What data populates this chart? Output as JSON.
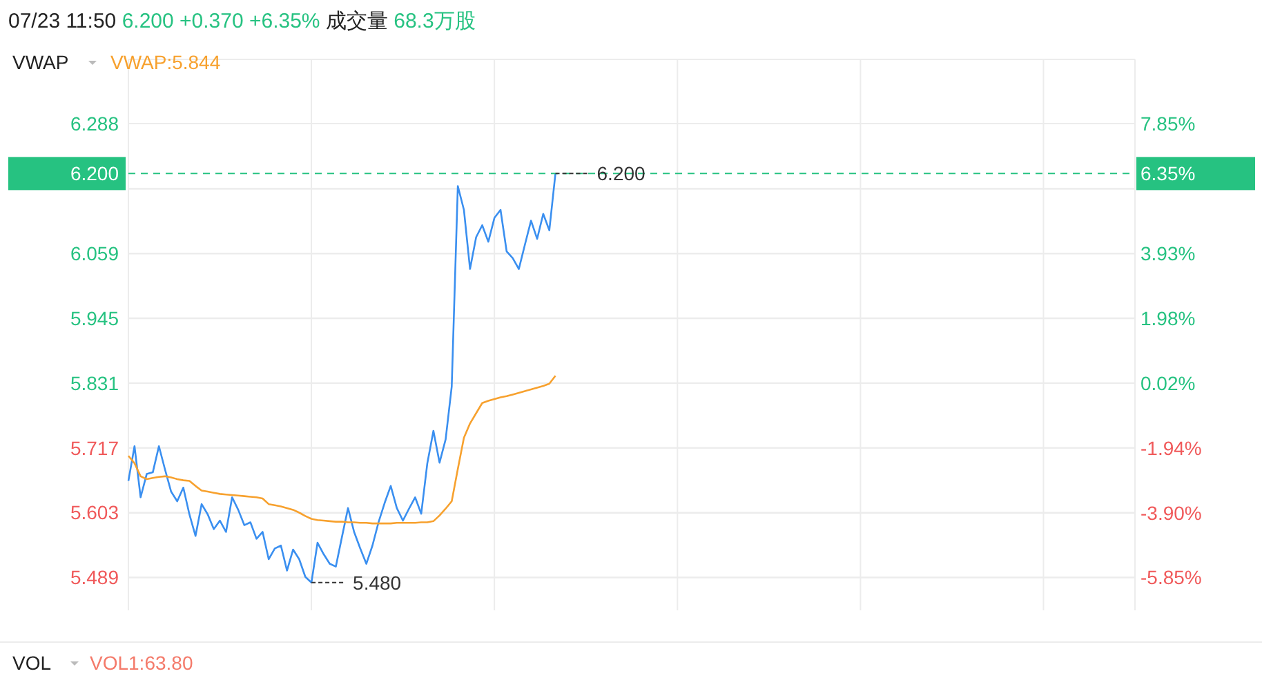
{
  "chart_data": {
    "type": "line",
    "title": "07/23 11:50",
    "subtitle": "6.200 +0.370 +6.35%",
    "annotations": [
      "成交量",
      "68.3万股",
      "VWAP",
      "VWAP:5.844",
      "VOL",
      "VOL1:63.80",
      "6.35%",
      "5.480",
      "6.200"
    ],
    "categories": [
      null,
      null,
      null,
      null,
      null,
      null,
      null,
      null,
      null,
      null,
      null,
      null,
      null,
      null,
      null,
      null,
      null,
      null,
      null,
      null,
      null,
      null,
      null,
      null,
      null,
      null,
      null,
      null,
      null,
      null,
      null,
      null,
      null,
      null,
      null,
      null,
      null,
      null,
      null,
      null,
      null,
      null,
      null,
      null,
      null,
      null,
      null,
      null,
      null,
      null,
      null,
      null,
      null,
      null,
      null,
      null,
      null,
      null,
      null,
      null,
      null,
      null,
      null,
      null,
      null,
      null,
      null,
      null,
      null,
      null,
      null,
      null,
      null,
      null,
      null,
      null,
      null,
      null,
      null,
      null,
      null,
      null,
      null,
      null,
      null,
      null,
      null,
      null,
      null,
      null,
      null,
      null,
      null,
      null,
      null,
      null,
      null,
      null,
      null,
      null,
      null,
      null,
      null,
      null,
      null,
      null,
      null,
      null,
      null,
      null,
      null,
      null,
      null,
      null,
      null,
      null,
      null,
      null,
      null,
      null,
      null,
      null,
      null,
      null,
      null,
      null,
      null,
      null,
      null,
      null,
      null,
      null,
      null,
      null,
      null,
      null,
      null,
      null,
      null,
      null,
      null,
      null,
      null,
      null,
      null,
      null,
      null,
      null,
      null,
      null,
      null,
      null,
      null,
      null,
      null,
      null,
      null,
      null,
      null,
      null,
      null,
      null,
      null,
      null,
      null,
      null
    ],
    "series": [
      {
        "color": "#3a8ff0",
        "values": [
          5.659,
          5.72,
          5.63,
          5.671,
          5.674,
          5.72,
          5.679,
          5.64,
          5.623,
          5.647,
          5.6,
          5.562,
          5.618,
          5.6,
          5.574,
          5.589,
          5.569,
          5.63,
          5.608,
          5.581,
          5.586,
          5.557,
          5.569,
          5.521,
          5.54,
          5.545,
          5.501,
          5.538,
          5.521,
          5.49,
          5.48,
          5.55,
          5.53,
          5.513,
          5.508,
          5.56,
          5.611,
          5.569,
          5.54,
          5.513,
          5.545,
          5.586,
          5.62,
          5.65,
          5.611,
          5.589,
          5.61,
          5.63,
          5.601,
          5.69,
          5.747,
          5.691,
          5.732,
          5.825,
          6.178,
          6.136,
          6.032,
          6.088,
          6.109,
          6.08,
          6.122,
          6.136,
          6.063,
          6.051,
          6.032,
          6.075,
          6.117,
          6.085,
          6.129,
          6.1,
          6.2,
          null,
          null,
          null,
          null,
          null,
          null,
          null,
          null,
          null,
          null,
          null,
          null,
          null,
          null,
          null,
          null,
          null,
          null,
          null,
          null,
          null,
          null,
          null,
          null,
          null,
          null,
          null,
          null,
          null,
          null,
          null,
          null,
          null,
          null,
          null,
          null,
          null,
          null,
          null,
          null,
          null,
          null,
          null,
          null,
          null,
          null,
          null,
          null,
          null,
          null,
          null,
          null,
          null,
          null,
          null,
          null,
          null,
          null,
          null,
          null,
          null,
          null,
          null,
          null,
          null,
          null,
          null,
          null,
          null,
          null,
          null,
          null,
          null,
          null,
          null,
          null,
          null,
          null,
          null,
          null,
          null,
          null,
          null,
          null,
          null,
          null,
          null,
          null,
          null,
          null,
          null,
          null,
          null,
          null,
          null
        ]
      },
      {
        "color": "#f7a12e",
        "values": [
          5.703,
          5.69,
          5.667,
          5.662,
          5.664,
          5.666,
          5.667,
          5.665,
          5.662,
          5.66,
          5.659,
          5.65,
          5.642,
          5.64,
          5.638,
          5.636,
          5.635,
          5.634,
          5.633,
          5.632,
          5.631,
          5.63,
          5.628,
          5.618,
          5.616,
          5.614,
          5.611,
          5.608,
          5.603,
          5.597,
          5.592,
          5.59,
          5.589,
          5.588,
          5.587,
          5.587,
          5.586,
          5.586,
          5.585,
          5.585,
          5.584,
          5.584,
          5.584,
          5.584,
          5.585,
          5.585,
          5.585,
          5.585,
          5.586,
          5.586,
          5.588,
          5.598,
          5.61,
          5.623,
          5.68,
          5.735,
          5.76,
          5.778,
          5.796,
          5.8,
          5.803,
          5.806,
          5.808,
          5.811,
          5.814,
          5.817,
          5.82,
          5.823,
          5.826,
          5.83,
          5.844,
          null,
          null,
          null,
          null,
          null,
          null,
          null,
          null,
          null,
          null,
          null,
          null,
          null,
          null,
          null,
          null,
          null,
          null,
          null,
          null,
          null,
          null,
          null,
          null,
          null,
          null,
          null,
          null,
          null,
          null,
          null,
          null,
          null,
          null,
          null,
          null,
          null,
          null,
          null,
          null,
          null,
          null,
          null,
          null,
          null,
          null,
          null,
          null,
          null,
          null,
          null,
          null,
          null,
          null,
          null,
          null,
          null,
          null,
          null,
          null,
          null,
          null,
          null,
          null,
          null,
          null,
          null,
          null,
          null,
          null,
          null,
          null,
          null,
          null,
          null,
          null,
          null,
          null,
          null,
          null,
          null,
          null,
          null,
          null,
          null,
          null,
          null,
          null,
          null,
          null,
          null,
          null,
          null,
          null,
          null
        ]
      }
    ],
    "ylim": [
      5.431,
      6.401
    ],
    "yticks": [
      6.288,
      {
        "value": 6.173,
        "label": null
      },
      6.059,
      5.945,
      5.831,
      5.717,
      5.603,
      5.489
    ],
    "y2lim": [
      -6.84,
      9.79
    ],
    "y2ticks": [
      {
        "value": 7.85,
        "label": "7.85%"
      },
      {
        "value": 5.89,
        "label": null
      },
      {
        "value": 3.93,
        "label": "3.93%"
      },
      {
        "value": 1.98,
        "label": "1.98%"
      },
      {
        "value": 0.02,
        "label": "0.02%"
      },
      {
        "value": -1.94,
        "label": "-1.94%"
      },
      {
        "value": -3.9,
        "label": "-3.90%"
      },
      {
        "value": -5.85,
        "label": "-5.85%"
      }
    ],
    "ref_lines": [
      {
        "axis": "y",
        "value": 6.2,
        "label": "6.200",
        "color": "#26c281",
        "line_style": "dashed"
      }
    ],
    "grid": true,
    "marker": "none"
  }
}
